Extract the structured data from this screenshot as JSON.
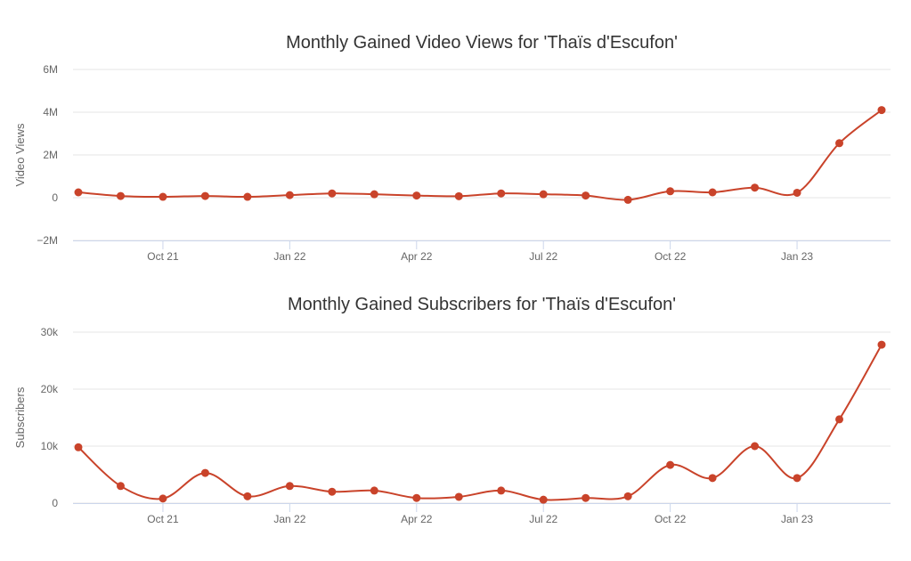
{
  "chart_data": [
    {
      "type": "line",
      "title": "Monthly Gained Video Views for 'Thaïs d'Escufon'",
      "ylabel": "Video Views",
      "xlabel": "",
      "x": [
        "Aug 21",
        "Sep 21",
        "Oct 21",
        "Nov 21",
        "Dec 21",
        "Jan 22",
        "Feb 22",
        "Mar 22",
        "Apr 22",
        "May 22",
        "Jun 22",
        "Jul 22",
        "Aug 22",
        "Sep 22",
        "Oct 22",
        "Nov 22",
        "Dec 22",
        "Jan 23",
        "Feb 23",
        "Mar 23"
      ],
      "values": [
        250000,
        80000,
        40000,
        80000,
        40000,
        120000,
        200000,
        160000,
        100000,
        70000,
        200000,
        160000,
        100000,
        -100000,
        300000,
        250000,
        470000,
        230000,
        2550000,
        4100000
      ],
      "ylim": [
        -2000000,
        6000000
      ],
      "yticks": [
        -2000000,
        0,
        2000000,
        4000000,
        6000000
      ],
      "ytick_labels": [
        "−2M",
        "0",
        "2M",
        "4M",
        "6M"
      ],
      "xtick_labels": [
        "Oct 21",
        "Jan 22",
        "Apr 22",
        "Jul 22",
        "Oct 22",
        "Jan 23"
      ],
      "color": "#c9432a",
      "grid": true
    },
    {
      "type": "line",
      "title": "Monthly Gained Subscribers for 'Thaïs d'Escufon'",
      "ylabel": "Subscribers",
      "xlabel": "",
      "x": [
        "Aug 21",
        "Sep 21",
        "Oct 21",
        "Nov 21",
        "Dec 21",
        "Jan 22",
        "Feb 22",
        "Mar 22",
        "Apr 22",
        "May 22",
        "Jun 22",
        "Jul 22",
        "Aug 22",
        "Sep 22",
        "Oct 22",
        "Nov 22",
        "Dec 22",
        "Jan 23",
        "Feb 23",
        "Mar 23"
      ],
      "values": [
        9800,
        3000,
        800,
        5300,
        1200,
        3000,
        2000,
        2200,
        900,
        1100,
        2200,
        600,
        900,
        1200,
        6700,
        4400,
        10000,
        4400,
        14700,
        27800
      ],
      "ylim": [
        0,
        30000
      ],
      "yticks": [
        0,
        10000,
        20000,
        30000
      ],
      "ytick_labels": [
        "0",
        "10k",
        "20k",
        "30k"
      ],
      "xtick_labels": [
        "Oct 21",
        "Jan 22",
        "Apr 22",
        "Jul 22",
        "Oct 22",
        "Jan 23"
      ],
      "color": "#c9432a",
      "grid": true
    }
  ]
}
